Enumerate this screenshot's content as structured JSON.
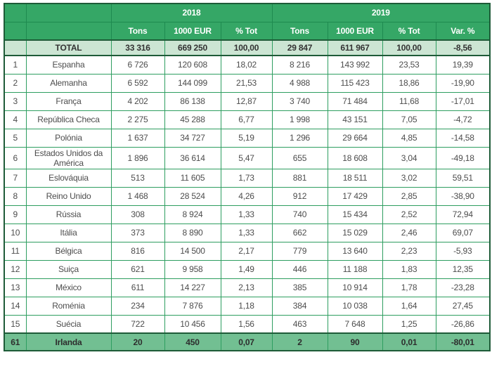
{
  "colors": {
    "header_green": "#35A766",
    "total_row_light_green": "#CCE5D3",
    "highlight_row_green": "#72BF92",
    "cell_border_green": "#2E9E60",
    "dark_border_green": "#1E5B38",
    "body_text": "#4d4d4d",
    "header_text": "#ffffff"
  },
  "chart_data": {
    "type": "table",
    "year_groups": [
      {
        "label": "2018",
        "cols": 3
      },
      {
        "label": "2019",
        "cols": 4
      }
    ],
    "columns": [
      "Tons",
      "1000 EUR",
      "% Tot",
      "Tons",
      "1000 EUR",
      "% Tot",
      "Var. %"
    ],
    "rows": [
      {
        "rank": "",
        "country": "TOTAL",
        "values": [
          "33 316",
          "669 250",
          "100,00",
          "29 847",
          "611 967",
          "100,00",
          "-8,56"
        ],
        "style": "total"
      },
      {
        "rank": "1",
        "country": "Espanha",
        "values": [
          "6 726",
          "120 608",
          "18,02",
          "8 216",
          "143 992",
          "23,53",
          "19,39"
        ],
        "style": "data"
      },
      {
        "rank": "2",
        "country": "Alemanha",
        "values": [
          "6 592",
          "144 099",
          "21,53",
          "4 988",
          "115 423",
          "18,86",
          "-19,90"
        ],
        "style": "data"
      },
      {
        "rank": "3",
        "country": "França",
        "values": [
          "4 202",
          "86 138",
          "12,87",
          "3 740",
          "71 484",
          "11,68",
          "-17,01"
        ],
        "style": "data"
      },
      {
        "rank": "4",
        "country": "República Checa",
        "values": [
          "2 275",
          "45 288",
          "6,77",
          "1 998",
          "43 151",
          "7,05",
          "-4,72"
        ],
        "style": "data"
      },
      {
        "rank": "5",
        "country": "Polónia",
        "values": [
          "1 637",
          "34 727",
          "5,19",
          "1 296",
          "29 664",
          "4,85",
          "-14,58"
        ],
        "style": "data"
      },
      {
        "rank": "6",
        "country": "Estados Unidos da América",
        "values": [
          "1 896",
          "36 614",
          "5,47",
          "655",
          "18 608",
          "3,04",
          "-49,18"
        ],
        "style": "data"
      },
      {
        "rank": "7",
        "country": "Eslováquia",
        "values": [
          "513",
          "11 605",
          "1,73",
          "881",
          "18 511",
          "3,02",
          "59,51"
        ],
        "style": "data"
      },
      {
        "rank": "8",
        "country": "Reino Unido",
        "values": [
          "1 468",
          "28 524",
          "4,26",
          "912",
          "17 429",
          "2,85",
          "-38,90"
        ],
        "style": "data"
      },
      {
        "rank": "9",
        "country": "Rússia",
        "values": [
          "308",
          "8 924",
          "1,33",
          "740",
          "15 434",
          "2,52",
          "72,94"
        ],
        "style": "data"
      },
      {
        "rank": "10",
        "country": "Itália",
        "values": [
          "373",
          "8 890",
          "1,33",
          "662",
          "15 029",
          "2,46",
          "69,07"
        ],
        "style": "data"
      },
      {
        "rank": "11",
        "country": "Bélgica",
        "values": [
          "816",
          "14 500",
          "2,17",
          "779",
          "13 640",
          "2,23",
          "-5,93"
        ],
        "style": "data"
      },
      {
        "rank": "12",
        "country": "Suiça",
        "values": [
          "621",
          "9 958",
          "1,49",
          "446",
          "11 188",
          "1,83",
          "12,35"
        ],
        "style": "data"
      },
      {
        "rank": "13",
        "country": "México",
        "values": [
          "611",
          "14 227",
          "2,13",
          "385",
          "10 914",
          "1,78",
          "-23,28"
        ],
        "style": "data"
      },
      {
        "rank": "14",
        "country": "Roménia",
        "values": [
          "234",
          "7 876",
          "1,18",
          "384",
          "10 038",
          "1,64",
          "27,45"
        ],
        "style": "data"
      },
      {
        "rank": "15",
        "country": "Suécia",
        "values": [
          "722",
          "10 456",
          "1,56",
          "463",
          "7 648",
          "1,25",
          "-26,86"
        ],
        "style": "data"
      },
      {
        "rank": "61",
        "country": "Irlanda",
        "values": [
          "20",
          "450",
          "0,07",
          "2",
          "90",
          "0,01",
          "-80,01"
        ],
        "style": "highlight"
      }
    ]
  }
}
